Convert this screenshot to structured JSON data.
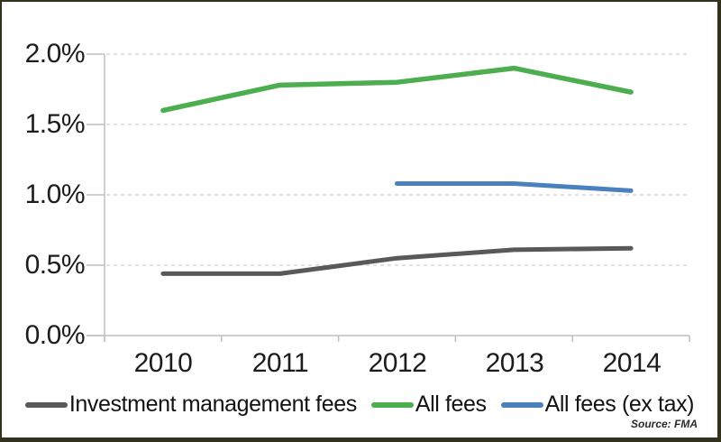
{
  "chart_data": {
    "type": "line",
    "categories": [
      "2010",
      "2011",
      "2012",
      "2013",
      "2014"
    ],
    "series": [
      {
        "name": "Investment management fees",
        "color": "#58595b",
        "values": [
          0.44,
          0.44,
          0.55,
          0.61,
          0.62
        ]
      },
      {
        "name": "All fees",
        "color": "#4cae4f",
        "values": [
          1.6,
          1.78,
          1.8,
          1.9,
          1.73
        ]
      },
      {
        "name": "All fees (ex tax)",
        "color": "#4a80bd",
        "values": [
          null,
          null,
          1.08,
          1.08,
          1.03
        ]
      }
    ],
    "ylabel": "",
    "xlabel": "",
    "ylim": [
      0.0,
      2.0
    ],
    "ytick_step": 0.5,
    "ytick_labels": [
      "2.0%",
      "1.5%",
      "1.0%",
      "0.5%",
      "0.0%"
    ],
    "grid": "horizontal dashed",
    "legend_position": "bottom",
    "source_note": "Source: FMA"
  },
  "colors": {
    "gridline": "#d9d9d9",
    "axis": "#bfbfbf",
    "frame_border": "#31311d",
    "tick_text": "#1c1c1c"
  }
}
